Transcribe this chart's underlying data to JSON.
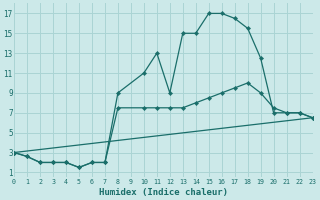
{
  "xlabel": "Humidex (Indice chaleur)",
  "bg_color": "#cce9e9",
  "grid_color": "#aad4d4",
  "line_color": "#1a6e6a",
  "line1_x": [
    0,
    1,
    2,
    3,
    4,
    5,
    6,
    7,
    8,
    10,
    11,
    12,
    13,
    14,
    15,
    16,
    17,
    18,
    19,
    20,
    21,
    22,
    23
  ],
  "line1_y": [
    3.0,
    2.6,
    2.0,
    2.0,
    2.0,
    1.5,
    2.0,
    2.0,
    9.0,
    11.0,
    13.0,
    9.0,
    15.0,
    15.0,
    17.0,
    17.0,
    16.5,
    15.5,
    12.5,
    7.0,
    7.0,
    7.0,
    6.5
  ],
  "line2_x": [
    0,
    1,
    2,
    3,
    4,
    5,
    6,
    7,
    8,
    10,
    11,
    12,
    13,
    14,
    15,
    16,
    17,
    18,
    19,
    20,
    21,
    22,
    23
  ],
  "line2_y": [
    3.0,
    2.6,
    2.0,
    2.0,
    2.0,
    1.5,
    2.0,
    2.0,
    7.5,
    7.5,
    7.5,
    7.5,
    7.5,
    8.0,
    8.5,
    9.0,
    9.5,
    10.0,
    9.0,
    7.5,
    7.0,
    7.0,
    6.5
  ],
  "line3_x": [
    0,
    23
  ],
  "line3_y": [
    3.0,
    6.5
  ],
  "xlim": [
    0,
    23
  ],
  "ylim": [
    0.5,
    18
  ],
  "yticks": [
    1,
    3,
    5,
    7,
    9,
    11,
    13,
    15,
    17
  ],
  "xticks": [
    0,
    1,
    2,
    3,
    4,
    5,
    6,
    7,
    8,
    9,
    10,
    11,
    12,
    13,
    14,
    15,
    16,
    17,
    18,
    19,
    20,
    21,
    22,
    23
  ]
}
